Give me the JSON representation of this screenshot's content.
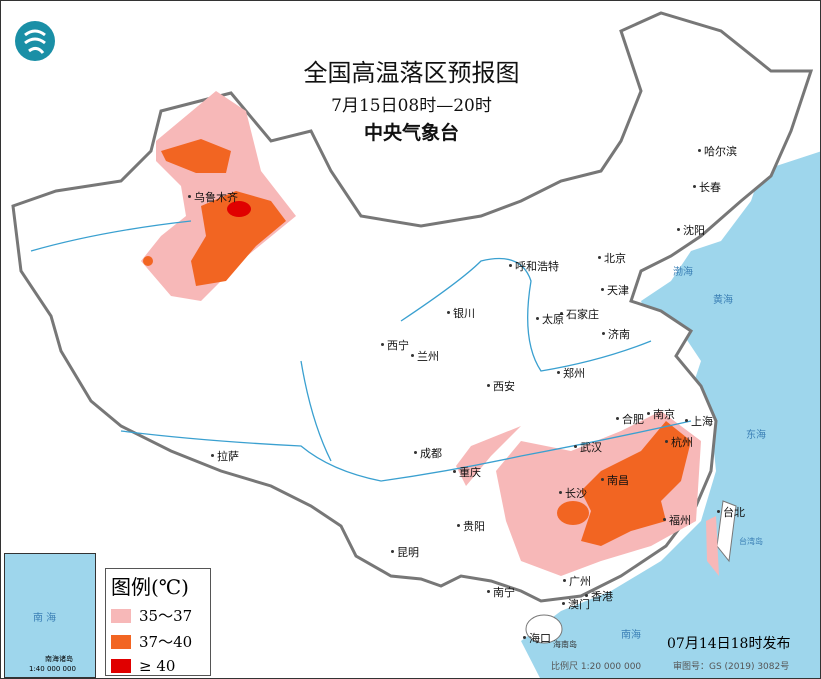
{
  "header": {
    "title": "全国高温落区预报图",
    "time_range": "7月15日08时—20时",
    "agency": "中央气象台"
  },
  "cities": [
    {
      "name": "乌鲁木齐"
    },
    {
      "name": "哈尔滨"
    },
    {
      "name": "长春"
    },
    {
      "name": "沈阳"
    },
    {
      "name": "北京"
    },
    {
      "name": "天津"
    },
    {
      "name": "呼和浩特"
    },
    {
      "name": "石家庄"
    },
    {
      "name": "太原"
    },
    {
      "name": "济南"
    },
    {
      "name": "银川"
    },
    {
      "name": "西宁"
    },
    {
      "name": "兰州"
    },
    {
      "name": "郑州"
    },
    {
      "name": "西安"
    },
    {
      "name": "合肥"
    },
    {
      "name": "南京"
    },
    {
      "name": "上海"
    },
    {
      "name": "武汉"
    },
    {
      "name": "成都"
    },
    {
      "name": "杭州"
    },
    {
      "name": "重庆"
    },
    {
      "name": "南昌"
    },
    {
      "name": "长沙"
    },
    {
      "name": "福州"
    },
    {
      "name": "贵阳"
    },
    {
      "name": "拉萨"
    },
    {
      "name": "昆明"
    },
    {
      "name": "南宁"
    },
    {
      "name": "广州"
    },
    {
      "name": "香港"
    },
    {
      "name": "澳门"
    },
    {
      "name": "海口"
    },
    {
      "name": "台北"
    }
  ],
  "seas": [
    {
      "name": "渤海"
    },
    {
      "name": "黄海"
    },
    {
      "name": "东海"
    },
    {
      "name": "南海"
    },
    {
      "name": "台湾岛"
    },
    {
      "name": "海南岛"
    }
  ],
  "legend": {
    "title": "图例(℃)",
    "items": [
      {
        "label": "35～37",
        "color": "#f7b8b8"
      },
      {
        "label": "37～40",
        "color": "#f26522"
      },
      {
        "label": "≥ 40",
        "color": "#e00000"
      }
    ]
  },
  "inset": {
    "sea": "南 海",
    "islands": "南海诸岛",
    "scale": "1:40 000 000"
  },
  "footer": {
    "published": "07月14日18时发布",
    "scale": "比例尺 1:20 000 000",
    "approval": "审图号：GS (2019) 3082号"
  },
  "colors": {
    "sea": "#9ed6ec",
    "border": "#666666",
    "river": "#3aa0d0"
  }
}
